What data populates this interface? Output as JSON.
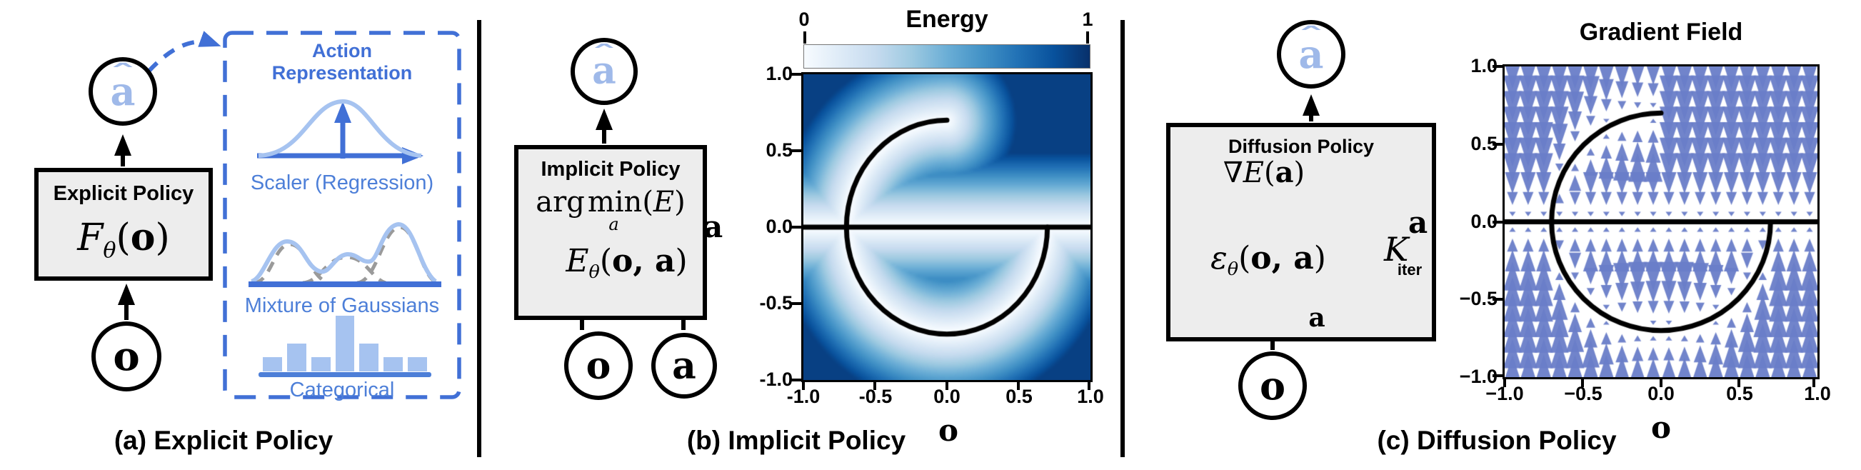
{
  "colors": {
    "accent": "#4170d6",
    "light_blue": "#a6c3f0",
    "mid_blue": "#4d7fd8",
    "ahat": "#9fb9e9",
    "box_fill": "#ededed",
    "arrow_field": "#697dc8"
  },
  "panels": {
    "a": {
      "caption": "(a) Explicit Policy",
      "node_ahat": {
        "letter": "a",
        "hat": "ˆ"
      },
      "node_o": "o",
      "box": {
        "title": "Explicit Policy",
        "formula": {
          "name": "F",
          "sub": "θ",
          "open": "(",
          "arg": "o",
          "close": ")"
        }
      },
      "rep": {
        "title1": "Action",
        "title2": "Representation",
        "scaler": "Scaler (Regression)",
        "mog": "Mixture of Gaussians",
        "cat": "Categorical"
      }
    },
    "b": {
      "caption": "(b) Implicit Policy",
      "node_ahat": {
        "letter": "a",
        "hat": "ˆ"
      },
      "node_o": "o",
      "node_a": "a",
      "box": {
        "title": "Implicit Policy",
        "argmin": {
          "a1": "arg",
          "a2": "min",
          "sub": "a",
          "open": "(",
          "E": "E",
          "close": ")"
        },
        "energy": {
          "name": "E",
          "sub": "θ",
          "open": "(",
          "arg1": "o",
          "comma": ", ",
          "arg2": "a",
          "close": ")"
        }
      },
      "plot": {
        "title": "Energy",
        "cmin": "0",
        "cmax": "1",
        "yticks": [
          "1.0",
          "0.5",
          "0.0",
          "-0.5",
          "-1.0"
        ],
        "xticks": [
          "-1.0",
          "-0.5",
          "0.0",
          "0.5",
          "1.0"
        ],
        "xlabel": "o",
        "ylabel": "a"
      }
    },
    "c": {
      "caption": "(c) Diffusion Policy",
      "node_ahat": {
        "letter": "a",
        "hat": "ˆ"
      },
      "node_o": "o",
      "box": {
        "title": "Diffusion Policy",
        "grad": {
          "nabla": "∇",
          "E": "E",
          "open": "(",
          "arg": "a",
          "close": ")"
        },
        "eps": {
          "name": "ε",
          "sub": "θ",
          "open": "(",
          "arg1": "o",
          "comma": ", ",
          "arg2": "a",
          "close": ")"
        },
        "k": "K",
        "k_sub": "iter",
        "a_loop": "a"
      },
      "plot": {
        "title": "Gradient Field",
        "yticks": [
          "1.0",
          "0.5",
          "0.0",
          "−0.5",
          "−1.0"
        ],
        "xticks": [
          "−1.0",
          "−0.5",
          "0.0",
          "0.5",
          "1.0"
        ],
        "xlabel": "o",
        "ylabel": "a"
      }
    }
  },
  "chart_data": [
    {
      "type": "heatmap",
      "id": "energy",
      "title": "Energy",
      "xlabel": "o",
      "ylabel": "a",
      "xlim": [
        -1,
        1
      ],
      "ylim": [
        -1,
        1
      ],
      "colorbar_range": [
        0,
        1
      ],
      "colormap": "Blues",
      "value_model": "energy increases with distance from the demonstrated action manifold (white near curve, dark blue far away)",
      "demo_curve": [
        "horizontal line a=0 for o in [-1,1]",
        "circle of radius 0.7 centered at origin, arc from 90° to 360° (top-right quarter absent)"
      ],
      "curve_radius": 0.7
    },
    {
      "type": "quiver",
      "id": "gradient_field",
      "title": "Gradient Field",
      "xlabel": "o",
      "ylabel": "a",
      "xlim": [
        -1,
        1
      ],
      "ylim": [
        -1,
        1
      ],
      "arrows": "vertical arrows pointing toward the nearest demonstrated action in each observation column; length proportional to distance",
      "grid": [
        20,
        20
      ],
      "curve_radius": 0.7,
      "arrow_color": "#697dc8"
    },
    {
      "type": "bar",
      "id": "categorical_hist",
      "label": "Categorical",
      "values": [
        0.25,
        0.5,
        0.25,
        1.0,
        0.5,
        0.25,
        0.25
      ]
    }
  ]
}
